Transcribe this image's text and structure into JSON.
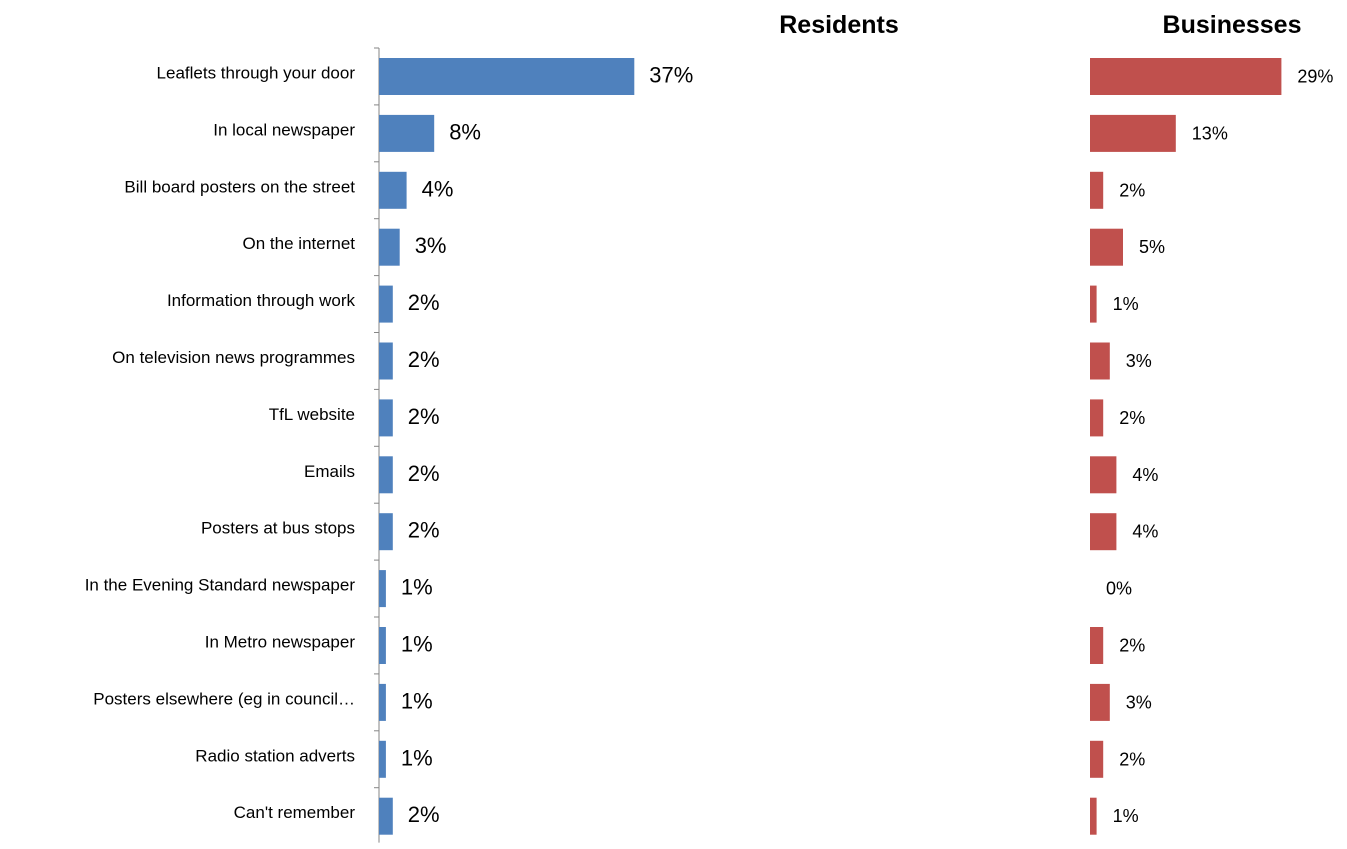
{
  "chart_data": {
    "type": "bar",
    "orientation": "horizontal",
    "categories": [
      "Leaflets through your door",
      "In local newspaper",
      "Bill board posters on the street",
      "On the internet",
      "Information through work",
      "On television news programmes",
      "TfL website",
      "Emails",
      "Posters at bus stops",
      "In the Evening Standard newspaper",
      "In Metro newspaper",
      "Posters elsewhere (eg in council…",
      "Radio station adverts",
      "Can't remember"
    ],
    "series": [
      {
        "name": "Residents",
        "color": "#4F81BD",
        "values": [
          37,
          8,
          4,
          3,
          2,
          2,
          2,
          2,
          2,
          1,
          1,
          1,
          1,
          2
        ],
        "labels": [
          "37%",
          "8%",
          "4%",
          "3%",
          "2%",
          "2%",
          "2%",
          "2%",
          "2%",
          "1%",
          "1%",
          "1%",
          "1%",
          "2%"
        ]
      },
      {
        "name": "Businesses",
        "color": "#C0504D",
        "values": [
          29,
          13,
          2,
          5,
          1,
          3,
          2,
          4,
          4,
          0,
          2,
          3,
          2,
          1
        ],
        "labels": [
          "29%",
          "13%",
          "2%",
          "5%",
          "1%",
          "3%",
          "2%",
          "4%",
          "4%",
          "0%",
          "2%",
          "3%",
          "2%",
          "1%"
        ]
      }
    ],
    "unit": "%",
    "grid": false,
    "legend": "none"
  }
}
